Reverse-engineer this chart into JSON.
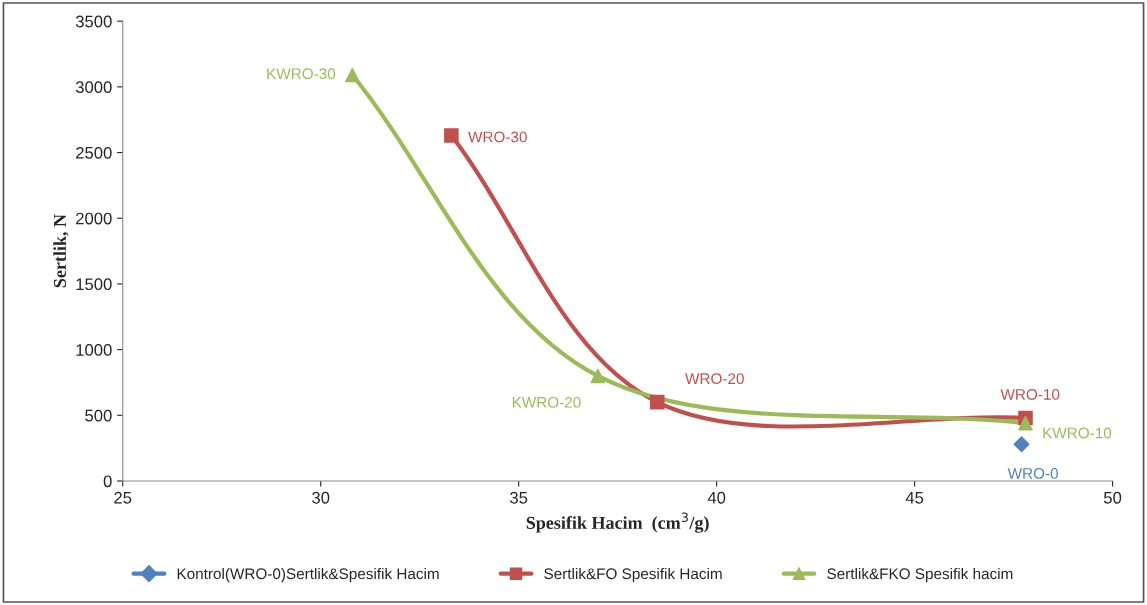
{
  "chart_data": {
    "type": "line",
    "xlabel": "Spesifik Hacim  (cm$^{3}$/g)",
    "ylabel": "Sertlik, N",
    "xlim": [
      25,
      50
    ],
    "xticks": [
      25,
      30,
      35,
      40,
      45,
      50
    ],
    "ylim": [
      0,
      3500
    ],
    "yticks": [
      0,
      500,
      1000,
      1500,
      2000,
      2500,
      3000,
      3500
    ],
    "grid": false,
    "legend": "bottom",
    "series": [
      {
        "name": "Kontrol(WRO-0)Sertlik&Spesifik Hacim",
        "color": "#4f81bd",
        "marker": "diamond",
        "x": [
          47.7
        ],
        "values": [
          280
        ]
      },
      {
        "name": "Sertlik&FO Spesifik Hacim",
        "color": "#c0504d",
        "marker": "square",
        "x": [
          33.3,
          38.5,
          47.8
        ],
        "values": [
          2630,
          600,
          480
        ]
      },
      {
        "name": "Sertlik&FKO Spesifik hacim",
        "color": "#9bbb59",
        "marker": "triangle",
        "x": [
          30.8,
          37.0,
          47.8
        ],
        "values": [
          3090,
          800,
          440
        ]
      }
    ],
    "annotations": [
      {
        "text": "WRO-0",
        "x": 47.7,
        "y": 280
      },
      {
        "text": "WRO-30",
        "x": 33.3,
        "y": 2630
      },
      {
        "text": "WRO-20",
        "x": 38.5,
        "y": 600
      },
      {
        "text": "WRO-10",
        "x": 47.8,
        "y": 480
      },
      {
        "text": "KWRO-30",
        "x": 30.8,
        "y": 3090
      },
      {
        "text": "KWRO-20",
        "x": 37.0,
        "y": 800
      },
      {
        "text": "KWRO-10",
        "x": 47.8,
        "y": 440
      }
    ]
  }
}
